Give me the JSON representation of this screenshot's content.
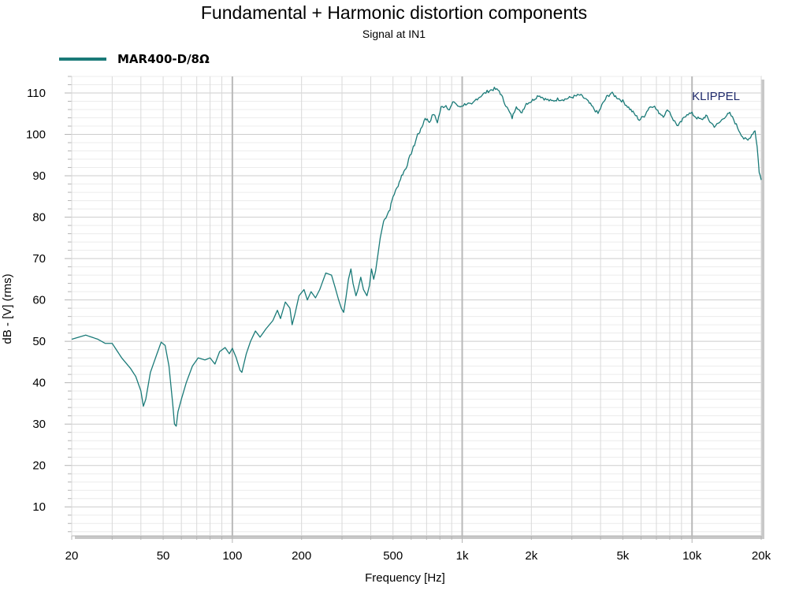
{
  "chart_data": {
    "type": "line",
    "title": "Fundamental + Harmonic distortion components",
    "subtitle": "Signal at IN1",
    "xlabel": "Frequency [Hz]",
    "ylabel": "dB - [V]  (rms)",
    "x_scale": "log",
    "xlim": [
      20,
      20000
    ],
    "ylim": [
      3,
      114
    ],
    "grid": true,
    "legend_position": "top-left",
    "watermark": "KLIPPEL",
    "x_ticks": [
      {
        "value": 20,
        "label": "20"
      },
      {
        "value": 50,
        "label": "50"
      },
      {
        "value": 100,
        "label": "100"
      },
      {
        "value": 200,
        "label": "200"
      },
      {
        "value": 500,
        "label": "500"
      },
      {
        "value": 1000,
        "label": "1k"
      },
      {
        "value": 2000,
        "label": "2k"
      },
      {
        "value": 5000,
        "label": "5k"
      },
      {
        "value": 10000,
        "label": "10k"
      },
      {
        "value": 20000,
        "label": "20k"
      }
    ],
    "y_ticks": [
      10,
      20,
      30,
      40,
      50,
      60,
      70,
      80,
      90,
      100,
      110
    ],
    "series": [
      {
        "name": "MAR400-D/8Ω",
        "color": "#1a7a78",
        "points": [
          [
            20,
            50.5
          ],
          [
            23,
            51.5
          ],
          [
            26,
            50.5
          ],
          [
            28,
            49.5
          ],
          [
            30,
            49.5
          ],
          [
            33,
            46.0
          ],
          [
            36,
            43.5
          ],
          [
            38,
            41.5
          ],
          [
            40,
            38.0
          ],
          [
            41,
            34.3
          ],
          [
            42,
            36.0
          ],
          [
            44,
            42.5
          ],
          [
            47,
            47.0
          ],
          [
            49,
            49.8
          ],
          [
            51,
            49.0
          ],
          [
            53,
            44.0
          ],
          [
            55,
            35.0
          ],
          [
            56,
            30.0
          ],
          [
            57,
            29.5
          ],
          [
            58,
            33.0
          ],
          [
            60,
            36.0
          ],
          [
            63,
            40.0
          ],
          [
            67,
            44.0
          ],
          [
            71,
            46.0
          ],
          [
            76,
            45.5
          ],
          [
            80,
            46.0
          ],
          [
            84,
            44.5
          ],
          [
            88,
            47.5
          ],
          [
            93,
            48.5
          ],
          [
            97,
            47.0
          ],
          [
            100,
            48.3
          ],
          [
            104,
            46.0
          ],
          [
            108,
            43.0
          ],
          [
            110,
            42.5
          ],
          [
            115,
            47.0
          ],
          [
            120,
            50.0
          ],
          [
            126,
            52.5
          ],
          [
            132,
            51.0
          ],
          [
            140,
            53.0
          ],
          [
            150,
            55.0
          ],
          [
            157,
            57.5
          ],
          [
            162,
            55.5
          ],
          [
            170,
            59.5
          ],
          [
            178,
            58.0
          ],
          [
            182,
            54.0
          ],
          [
            187,
            56.5
          ],
          [
            195,
            61.0
          ],
          [
            205,
            62.5
          ],
          [
            212,
            60.0
          ],
          [
            220,
            62.0
          ],
          [
            230,
            60.5
          ],
          [
            240,
            62.5
          ],
          [
            255,
            66.5
          ],
          [
            270,
            66.0
          ],
          [
            280,
            63.0
          ],
          [
            290,
            60.0
          ],
          [
            298,
            58.0
          ],
          [
            305,
            57.0
          ],
          [
            312,
            60.5
          ],
          [
            320,
            65.0
          ],
          [
            328,
            67.5
          ],
          [
            335,
            64.0
          ],
          [
            345,
            61.0
          ],
          [
            352,
            62.5
          ],
          [
            362,
            65.5
          ],
          [
            372,
            62.5
          ],
          [
            385,
            61.0
          ],
          [
            395,
            63.5
          ],
          [
            403,
            67.5
          ],
          [
            412,
            65.0
          ],
          [
            420,
            67.0
          ],
          [
            430,
            71.0
          ],
          [
            440,
            75.0
          ],
          [
            455,
            79.0
          ],
          [
            470,
            80.5
          ],
          [
            485,
            82.0
          ],
          [
            500,
            85.0
          ],
          [
            520,
            87.0
          ],
          [
            545,
            90.0
          ],
          [
            570,
            92.0
          ],
          [
            600,
            95.5
          ],
          [
            620,
            97.5
          ],
          [
            640,
            100.0
          ],
          [
            660,
            101.0
          ],
          [
            690,
            104.0
          ],
          [
            720,
            103.0
          ],
          [
            750,
            105.0
          ],
          [
            780,
            103.0
          ],
          [
            810,
            106.5
          ],
          [
            850,
            107.0
          ],
          [
            880,
            106.0
          ],
          [
            920,
            108.0
          ],
          [
            970,
            106.5
          ],
          [
            1000,
            107.0
          ],
          [
            1050,
            107.5
          ],
          [
            1100,
            107.0
          ],
          [
            1150,
            108.5
          ],
          [
            1220,
            109.5
          ],
          [
            1300,
            110.5
          ],
          [
            1380,
            111.0
          ],
          [
            1450,
            110.5
          ],
          [
            1550,
            107.0
          ],
          [
            1650,
            104.0
          ],
          [
            1720,
            107.0
          ],
          [
            1800,
            105.0
          ],
          [
            1900,
            107.5
          ],
          [
            2000,
            108.0
          ],
          [
            2150,
            109.5
          ],
          [
            2300,
            108.5
          ],
          [
            2450,
            108.0
          ],
          [
            2600,
            108.5
          ],
          [
            2800,
            108.5
          ],
          [
            3000,
            109.0
          ],
          [
            3250,
            109.5
          ],
          [
            3450,
            108.5
          ],
          [
            3700,
            106.5
          ],
          [
            3900,
            105.0
          ],
          [
            4050,
            107.0
          ],
          [
            4250,
            109.0
          ],
          [
            4450,
            110.0
          ],
          [
            4700,
            109.0
          ],
          [
            5000,
            108.0
          ],
          [
            5300,
            106.5
          ],
          [
            5600,
            105.0
          ],
          [
            5900,
            103.5
          ],
          [
            6200,
            104.5
          ],
          [
            6500,
            106.5
          ],
          [
            6800,
            107.0
          ],
          [
            7100,
            105.5
          ],
          [
            7500,
            104.5
          ],
          [
            7900,
            106.0
          ],
          [
            8300,
            103.5
          ],
          [
            8700,
            102.0
          ],
          [
            9100,
            103.5
          ],
          [
            9500,
            105.0
          ],
          [
            10000,
            105.0
          ],
          [
            10500,
            104.0
          ],
          [
            11000,
            103.5
          ],
          [
            11500,
            104.5
          ],
          [
            12000,
            103.0
          ],
          [
            12500,
            102.0
          ],
          [
            13000,
            102.5
          ],
          [
            14000,
            104.5
          ],
          [
            14600,
            105.0
          ],
          [
            15200,
            103.5
          ],
          [
            16000,
            101.0
          ],
          [
            16800,
            99.0
          ],
          [
            17500,
            98.5
          ],
          [
            18200,
            100.0
          ],
          [
            18800,
            101.0
          ],
          [
            19200,
            97.0
          ],
          [
            19600,
            91.0
          ],
          [
            20000,
            89.0
          ]
        ]
      }
    ]
  }
}
